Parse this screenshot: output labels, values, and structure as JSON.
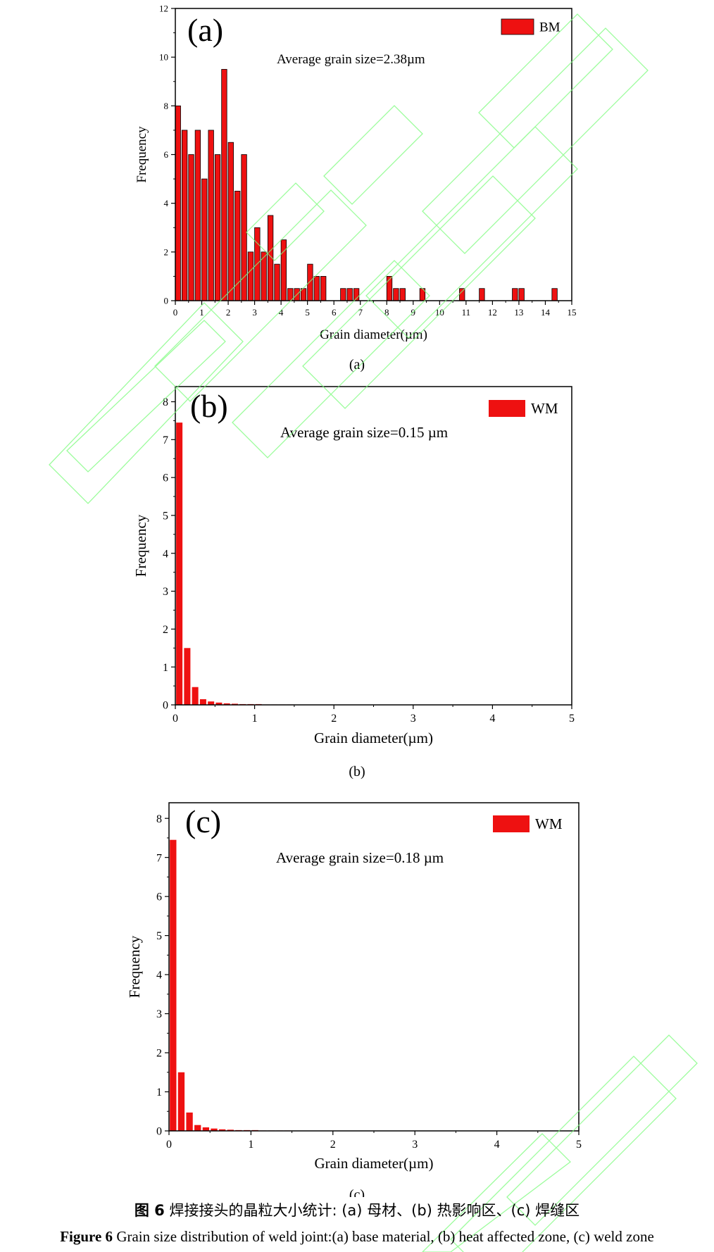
{
  "colors": {
    "bar": "#ee1111",
    "bar_stroke": "#000000",
    "axis": "#000000",
    "watermark": "#7cfc7c"
  },
  "captions": {
    "cn_label": "图 6",
    "cn_text": "焊接接头的晶粒大小统计: (a)  母材、(b)  热影响区、(c)  焊缝区",
    "en_label": "Figure 6",
    "en_text": "Grain size distribution of weld joint:(a) base material, (b) heat affected zone, (c) weld zone"
  },
  "chart_data": [
    {
      "type": "bar",
      "panel_tag": "(a)",
      "sublabel": "(a)",
      "annotation": "Average grain size=2.38µm",
      "xlabel": "Grain diameter(µm)",
      "ylabel": "Frequency",
      "legend": "BM",
      "legend_position": "top-right",
      "xlim": [
        0,
        15
      ],
      "ylim": [
        0,
        12
      ],
      "xticks": [
        0,
        1,
        2,
        3,
        4,
        5,
        6,
        7,
        8,
        9,
        10,
        11,
        12,
        13,
        14,
        15
      ],
      "yticks": [
        0,
        2,
        4,
        6,
        8,
        10,
        12
      ],
      "bar_width": 0.2,
      "x": [
        0.1,
        0.35,
        0.6,
        0.85,
        1.1,
        1.35,
        1.6,
        1.85,
        2.1,
        2.35,
        2.6,
        2.85,
        3.1,
        3.35,
        3.6,
        3.85,
        4.1,
        4.35,
        4.6,
        4.85,
        5.1,
        5.35,
        5.6,
        6.35,
        6.6,
        6.85,
        8.1,
        8.35,
        8.6,
        9.35,
        10.85,
        11.6,
        12.85,
        13.1,
        14.35
      ],
      "values": [
        8,
        7,
        6,
        7,
        5,
        7,
        6,
        9.5,
        6.5,
        4.5,
        6,
        2,
        3,
        2,
        3.5,
        1.5,
        2.5,
        0.5,
        0.5,
        0.5,
        1.5,
        1,
        1,
        0.5,
        0.5,
        0.5,
        1,
        0.5,
        0.5,
        0.5,
        0.5,
        0.5,
        0.5,
        0.5,
        0.5
      ]
    },
    {
      "type": "bar",
      "panel_tag": "(b)",
      "sublabel": "(b)",
      "annotation": "Average grain size=0.15 µm",
      "xlabel": "Grain diameter(µm)",
      "ylabel": "Frequency",
      "legend": "WM",
      "legend_position": "top-right",
      "xlim": [
        0,
        5
      ],
      "ylim": [
        0,
        8.4
      ],
      "xticks": [
        0,
        1,
        2,
        3,
        4,
        5
      ],
      "yticks": [
        0,
        1,
        2,
        3,
        4,
        5,
        6,
        7,
        8
      ],
      "bar_width": 0.08,
      "x": [
        0.05,
        0.15,
        0.25,
        0.35,
        0.45,
        0.55,
        0.65,
        0.75,
        0.85,
        0.95,
        1.05,
        1.15,
        1.25,
        1.35,
        1.45
      ],
      "values": [
        7.45,
        1.5,
        0.47,
        0.15,
        0.09,
        0.06,
        0.04,
        0.03,
        0.02,
        0.02,
        0.02,
        0.01,
        0.01,
        0.01,
        0.01
      ]
    },
    {
      "type": "bar",
      "panel_tag": "(c)",
      "sublabel": "(c)",
      "annotation": "Average grain size=0.18 µm",
      "xlabel": "Grain diameter(µm)",
      "ylabel": "Frequency",
      "legend": "WM",
      "legend_position": "top-right",
      "xlim": [
        0,
        5
      ],
      "ylim": [
        0,
        8.4
      ],
      "xticks": [
        0,
        1,
        2,
        3,
        4,
        5
      ],
      "yticks": [
        0,
        1,
        2,
        3,
        4,
        5,
        6,
        7,
        8
      ],
      "bar_width": 0.08,
      "x": [
        0.05,
        0.15,
        0.25,
        0.35,
        0.45,
        0.55,
        0.65,
        0.75,
        0.85,
        0.95,
        1.05,
        1.15,
        1.25,
        1.35,
        1.45
      ],
      "values": [
        7.45,
        1.5,
        0.47,
        0.15,
        0.09,
        0.06,
        0.04,
        0.03,
        0.02,
        0.02,
        0.02,
        0.01,
        0.01,
        0.01,
        0.01
      ]
    }
  ]
}
